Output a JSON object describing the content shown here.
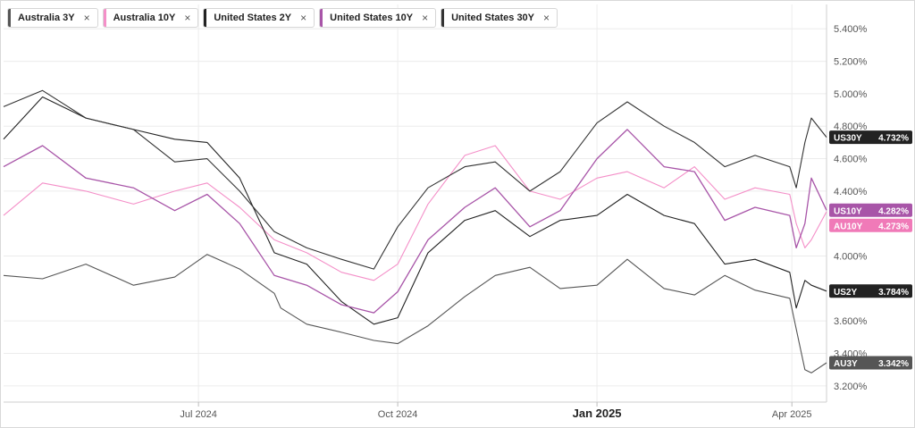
{
  "legend": [
    {
      "label": "Australia 3Y",
      "color": "#555555",
      "close": "×"
    },
    {
      "label": "Australia 10Y",
      "color": "#f48fc8",
      "close": "×"
    },
    {
      "label": "United States 2Y",
      "color": "#222222",
      "close": "×"
    },
    {
      "label": "United States 10Y",
      "color": "#a855a8",
      "close": "×"
    },
    {
      "label": "United States 30Y",
      "color": "#333333",
      "close": "×"
    }
  ],
  "chart_data": {
    "type": "line",
    "x_type": "date",
    "xlim": [
      "2024-04-02",
      "2025-04-17"
    ],
    "ylim": [
      3.1,
      5.55
    ],
    "y_ticks": [
      "3.200%",
      "3.400%",
      "3.600%",
      "4.000%",
      "4.400%",
      "4.600%",
      "4.800%",
      "5.000%",
      "5.200%",
      "5.400%"
    ],
    "y_tick_values": [
      3.2,
      3.4,
      3.6,
      4.0,
      4.4,
      4.6,
      4.8,
      5.0,
      5.2,
      5.4
    ],
    "x_ticks": [
      {
        "label": "Jul 2024",
        "date": "2024-07-01",
        "bold": false
      },
      {
        "label": "Oct 2024",
        "date": "2024-10-01",
        "bold": false
      },
      {
        "label": "Jan 2025",
        "date": "2025-01-01",
        "bold": true
      },
      {
        "label": "Apr 2025",
        "date": "2025-04-01",
        "bold": false
      }
    ],
    "grid": true,
    "series": [
      {
        "name": "Australia 3Y",
        "tag": "AU3Y",
        "last": "3.342%",
        "color": "#555555",
        "tag_color": "#555555",
        "width": 1.1,
        "x": [
          "2024-04-02",
          "2024-04-20",
          "2024-05-10",
          "2024-06-01",
          "2024-06-20",
          "2024-07-05",
          "2024-07-20",
          "2024-08-05",
          "2024-08-08",
          "2024-08-20",
          "2024-09-05",
          "2024-09-20",
          "2024-10-01",
          "2024-10-15",
          "2024-11-01",
          "2024-11-15",
          "2024-12-01",
          "2024-12-15",
          "2025-01-01",
          "2025-01-15",
          "2025-02-01",
          "2025-02-15",
          "2025-03-01",
          "2025-03-15",
          "2025-03-31",
          "2025-04-03",
          "2025-04-07",
          "2025-04-10",
          "2025-04-17"
        ],
        "y": [
          3.88,
          3.86,
          3.95,
          3.82,
          3.87,
          4.01,
          3.92,
          3.77,
          3.68,
          3.58,
          3.53,
          3.48,
          3.46,
          3.57,
          3.75,
          3.88,
          3.93,
          3.8,
          3.82,
          3.98,
          3.8,
          3.76,
          3.88,
          3.79,
          3.74,
          3.55,
          3.3,
          3.28,
          3.342
        ]
      },
      {
        "name": "Australia 10Y",
        "tag": "AU10Y",
        "last": "4.273%",
        "color": "#f48fc8",
        "tag_color": "#f07ab8",
        "width": 1.1,
        "x": [
          "2024-04-02",
          "2024-04-20",
          "2024-05-10",
          "2024-06-01",
          "2024-06-20",
          "2024-07-05",
          "2024-07-20",
          "2024-08-05",
          "2024-08-20",
          "2024-09-05",
          "2024-09-20",
          "2024-10-01",
          "2024-10-15",
          "2024-11-01",
          "2024-11-15",
          "2024-12-01",
          "2024-12-15",
          "2025-01-01",
          "2025-01-15",
          "2025-02-01",
          "2025-02-15",
          "2025-03-01",
          "2025-03-15",
          "2025-03-31",
          "2025-04-03",
          "2025-04-07",
          "2025-04-10",
          "2025-04-17"
        ],
        "y": [
          4.25,
          4.45,
          4.4,
          4.32,
          4.4,
          4.45,
          4.3,
          4.1,
          4.02,
          3.9,
          3.85,
          3.95,
          4.32,
          4.62,
          4.68,
          4.4,
          4.35,
          4.48,
          4.52,
          4.42,
          4.55,
          4.35,
          4.42,
          4.38,
          4.2,
          4.05,
          4.1,
          4.273
        ]
      },
      {
        "name": "United States 2Y",
        "tag": "US2Y",
        "last": "3.784%",
        "color": "#222222",
        "tag_color": "#222222",
        "width": 1.1,
        "x": [
          "2024-04-02",
          "2024-04-20",
          "2024-05-10",
          "2024-06-01",
          "2024-06-20",
          "2024-07-05",
          "2024-07-20",
          "2024-08-05",
          "2024-08-20",
          "2024-09-05",
          "2024-09-20",
          "2024-10-01",
          "2024-10-15",
          "2024-11-01",
          "2024-11-15",
          "2024-12-01",
          "2024-12-15",
          "2025-01-01",
          "2025-01-15",
          "2025-02-01",
          "2025-02-15",
          "2025-03-01",
          "2025-03-15",
          "2025-03-31",
          "2025-04-03",
          "2025-04-07",
          "2025-04-10",
          "2025-04-17"
        ],
        "y": [
          4.72,
          4.98,
          4.85,
          4.78,
          4.72,
          4.7,
          4.48,
          4.02,
          3.95,
          3.72,
          3.58,
          3.62,
          4.02,
          4.22,
          4.28,
          4.12,
          4.22,
          4.25,
          4.38,
          4.25,
          4.2,
          3.95,
          3.98,
          3.9,
          3.68,
          3.85,
          3.82,
          3.784
        ]
      },
      {
        "name": "United States 10Y",
        "tag": "US10Y",
        "last": "4.282%",
        "color": "#a855a8",
        "tag_color": "#a855a8",
        "width": 1.3,
        "x": [
          "2024-04-02",
          "2024-04-20",
          "2024-05-10",
          "2024-06-01",
          "2024-06-20",
          "2024-07-05",
          "2024-07-20",
          "2024-08-05",
          "2024-08-20",
          "2024-09-05",
          "2024-09-20",
          "2024-10-01",
          "2024-10-15",
          "2024-11-01",
          "2024-11-15",
          "2024-12-01",
          "2024-12-15",
          "2025-01-01",
          "2025-01-15",
          "2025-02-01",
          "2025-02-15",
          "2025-03-01",
          "2025-03-15",
          "2025-03-31",
          "2025-04-03",
          "2025-04-07",
          "2025-04-10",
          "2025-04-17"
        ],
        "y": [
          4.55,
          4.68,
          4.48,
          4.42,
          4.28,
          4.38,
          4.2,
          3.88,
          3.82,
          3.7,
          3.65,
          3.78,
          4.1,
          4.3,
          4.42,
          4.18,
          4.28,
          4.6,
          4.78,
          4.55,
          4.52,
          4.22,
          4.3,
          4.25,
          4.05,
          4.2,
          4.48,
          4.282
        ]
      },
      {
        "name": "United States 30Y",
        "tag": "US30Y",
        "last": "4.732%",
        "color": "#333333",
        "tag_color": "#222222",
        "width": 1.1,
        "x": [
          "2024-04-02",
          "2024-04-20",
          "2024-05-10",
          "2024-06-01",
          "2024-06-20",
          "2024-07-05",
          "2024-07-20",
          "2024-08-05",
          "2024-08-20",
          "2024-09-05",
          "2024-09-20",
          "2024-10-01",
          "2024-10-15",
          "2024-11-01",
          "2024-11-15",
          "2024-12-01",
          "2024-12-15",
          "2025-01-01",
          "2025-01-15",
          "2025-02-01",
          "2025-02-15",
          "2025-03-01",
          "2025-03-15",
          "2025-03-31",
          "2025-04-03",
          "2025-04-07",
          "2025-04-10",
          "2025-04-17"
        ],
        "y": [
          4.92,
          5.02,
          4.85,
          4.78,
          4.58,
          4.6,
          4.4,
          4.15,
          4.05,
          3.98,
          3.92,
          4.18,
          4.42,
          4.55,
          4.58,
          4.4,
          4.52,
          4.82,
          4.95,
          4.8,
          4.7,
          4.55,
          4.62,
          4.55,
          4.42,
          4.7,
          4.85,
          4.732
        ]
      }
    ]
  }
}
